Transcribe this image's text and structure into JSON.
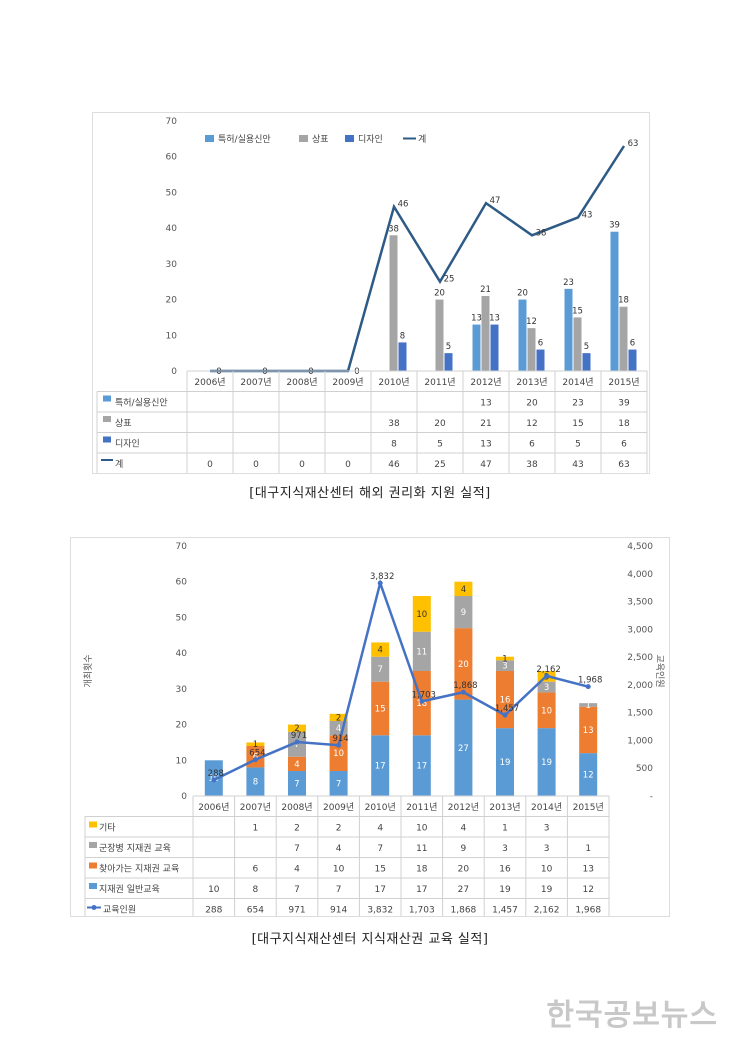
{
  "chart_data": [
    {
      "type": "bar",
      "title": "",
      "categories": [
        "2006년",
        "2007년",
        "2008년",
        "2009년",
        "2010년",
        "2011년",
        "2012년",
        "2013년",
        "2014년",
        "2015년"
      ],
      "series": [
        {
          "name": "특허/실용신안",
          "kind": "bar",
          "color": "#5b9bd5",
          "values": [
            null,
            null,
            null,
            null,
            null,
            null,
            13,
            20,
            23,
            39
          ]
        },
        {
          "name": "상표",
          "kind": "bar",
          "color": "#a5a5a5",
          "values": [
            null,
            null,
            null,
            null,
            38,
            20,
            21,
            12,
            15,
            18
          ]
        },
        {
          "name": "디자인",
          "kind": "bar",
          "color": "#4472c4",
          "values": [
            null,
            null,
            null,
            null,
            8,
            5,
            13,
            6,
            5,
            6
          ]
        },
        {
          "name": "계",
          "kind": "line",
          "color": "#2e5a86",
          "values": [
            0,
            0,
            0,
            0,
            46,
            25,
            47,
            38,
            43,
            63
          ]
        }
      ],
      "ylim": [
        0,
        70
      ],
      "yticks": [
        "0",
        "10",
        "20",
        "30",
        "40",
        "50",
        "60",
        "70"
      ],
      "table_values": [
        [
          "",
          "",
          "",
          "",
          "",
          "",
          "13",
          "20",
          "23",
          "39"
        ],
        [
          "",
          "",
          "",
          "",
          "38",
          "20",
          "21",
          "12",
          "15",
          "18"
        ],
        [
          "",
          "",
          "",
          "",
          "8",
          "5",
          "13",
          "6",
          "5",
          "6"
        ],
        [
          "0",
          "0",
          "0",
          "0",
          "46",
          "25",
          "47",
          "38",
          "43",
          "63"
        ]
      ],
      "caption": "[대구지식재산센터 해외 권리화 지원 실적]"
    },
    {
      "type": "bar",
      "title": "",
      "stacked": true,
      "categories": [
        "2006년",
        "2007년",
        "2008년",
        "2009년",
        "2010년",
        "2011년",
        "2012년",
        "2013년",
        "2014년",
        "2015년"
      ],
      "ylabel": "개최횟수",
      "y2label": "교육인원",
      "ylim": [
        0,
        70
      ],
      "y2lim": [
        0,
        4500
      ],
      "yticks": [
        "0",
        "10",
        "20",
        "30",
        "40",
        "50",
        "60",
        "70"
      ],
      "y2ticks": [
        "-",
        "500",
        "1,000",
        "1,500",
        "2,000",
        "2,500",
        "3,000",
        "3,500",
        "4,000",
        "4,500"
      ],
      "series": [
        {
          "name": "지재권 일반교육",
          "kind": "bar",
          "color": "#5b9bd5",
          "values": [
            10,
            8,
            7,
            7,
            17,
            17,
            27,
            19,
            19,
            12
          ]
        },
        {
          "name": "찾아가는 지재권 교육",
          "kind": "bar",
          "color": "#ed7d31",
          "values": [
            null,
            6,
            4,
            10,
            15,
            18,
            20,
            16,
            10,
            13
          ]
        },
        {
          "name": "군장병 지재권 교육",
          "kind": "bar",
          "color": "#a5a5a5",
          "values": [
            null,
            null,
            7,
            4,
            7,
            11,
            9,
            3,
            3,
            1
          ]
        },
        {
          "name": "기타",
          "kind": "bar",
          "color": "#ffc000",
          "values": [
            null,
            1,
            2,
            2,
            4,
            10,
            4,
            1,
            3,
            null
          ]
        },
        {
          "name": "교육인원",
          "kind": "line",
          "axis": "y2",
          "color": "#4472c4",
          "values": [
            288,
            654,
            971,
            914,
            3832,
            1703,
            1868,
            1457,
            2162,
            1968
          ],
          "labels": [
            "288",
            "654",
            "971",
            "914",
            "3,832",
            "1,703",
            "1,868",
            "1,457",
            "2,162",
            "1,968"
          ]
        }
      ],
      "table_order": [
        "기타",
        "군장병 지재권 교육",
        "찾아가는 지재권 교육",
        "지재권 일반교육",
        "교육인원"
      ],
      "table_values": [
        [
          "",
          "1",
          "2",
          "2",
          "4",
          "10",
          "4",
          "1",
          "3",
          ""
        ],
        [
          "",
          "",
          "7",
          "4",
          "7",
          "11",
          "9",
          "3",
          "3",
          "1"
        ],
        [
          "",
          "6",
          "4",
          "10",
          "15",
          "18",
          "20",
          "16",
          "10",
          "13"
        ],
        [
          "10",
          "8",
          "7",
          "7",
          "17",
          "17",
          "27",
          "19",
          "19",
          "12"
        ],
        [
          "288",
          "654",
          "971",
          "914",
          "3,832",
          "1,703",
          "1,868",
          "1,457",
          "2,162",
          "1,968"
        ]
      ],
      "caption": "[대구지식재산센터 지식재산권 교육 실적]"
    }
  ],
  "watermark": "한국공보뉴스"
}
